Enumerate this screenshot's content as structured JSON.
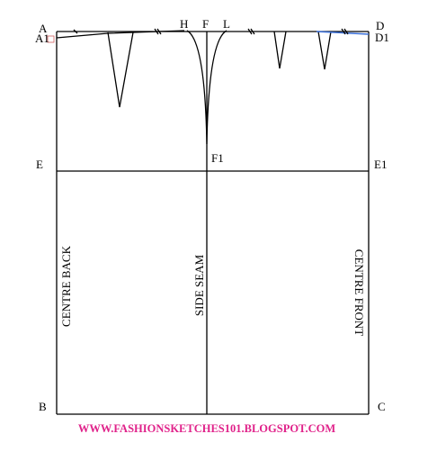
{
  "points": {
    "A": "A",
    "A1": "A1",
    "H": "H",
    "F": "F",
    "L": "L",
    "D": "D",
    "D1": "D1",
    "E": "E",
    "F1": "F1",
    "E1": "E1",
    "B": "B",
    "C": "C"
  },
  "panels": {
    "back": "CENTRE BACK",
    "side": "SIDE SEAM",
    "front": "CENTRE FRONT"
  },
  "watermark": "WWW.FASHIONSKETCHES101.BLOGSPOT.COM"
}
